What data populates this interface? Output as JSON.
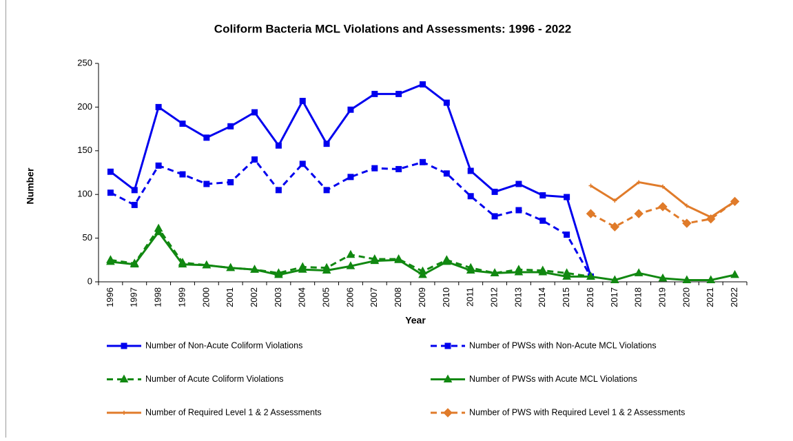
{
  "chart_data": {
    "type": "line",
    "title": "Coliform Bacteria MCL Violations and Assessments: 1996 - 2022",
    "x_label": "Year",
    "y_label": "Number",
    "categories": [
      "1996",
      "1997",
      "1998",
      "1999",
      "2000",
      "2001",
      "2002",
      "2003",
      "2004",
      "2005",
      "2006",
      "2007",
      "2008",
      "2009",
      "2010",
      "2011",
      "2012",
      "2013",
      "2014",
      "2015",
      "2016",
      "2017",
      "2018",
      "2019",
      "2020",
      "2021",
      "2022"
    ],
    "ylim": [
      0,
      250
    ],
    "yticks": [
      0,
      50,
      100,
      150,
      200,
      250
    ],
    "grid": false,
    "series": [
      {
        "name": "Number of Non-Acute Coliform Violations",
        "color": "#0000ee",
        "dash": false,
        "marker": "square",
        "values": [
          126,
          105,
          200,
          181,
          165,
          178,
          194,
          156,
          207,
          158,
          197,
          215,
          215,
          226,
          205,
          127,
          103,
          112,
          99,
          97,
          6,
          null,
          null,
          null,
          null,
          null,
          null
        ]
      },
      {
        "name": "Number of PWSs with Non-Acute MCL Violations",
        "color": "#0000ee",
        "dash": true,
        "marker": "square",
        "values": [
          102,
          88,
          133,
          123,
          112,
          114,
          140,
          105,
          135,
          105,
          120,
          130,
          129,
          137,
          124,
          98,
          75,
          82,
          70,
          54,
          6,
          null,
          null,
          null,
          null,
          null,
          null
        ]
      },
      {
        "name": "Number of Acute Coliform Violations",
        "color": "#118811",
        "dash": true,
        "marker": "triangle",
        "values": [
          25,
          21,
          61,
          22,
          19,
          16,
          14,
          10,
          17,
          16,
          31,
          26,
          26,
          12,
          25,
          16,
          10,
          14,
          13,
          10,
          6,
          null,
          null,
          null,
          null,
          null,
          null
        ]
      },
      {
        "name": "Number of PWSs with Acute MCL Violations",
        "color": "#118811",
        "dash": false,
        "marker": "triangle",
        "values": [
          23,
          20,
          57,
          20,
          19,
          16,
          14,
          8,
          14,
          13,
          18,
          24,
          25,
          8,
          23,
          13,
          10,
          11,
          11,
          6,
          6,
          2,
          10,
          4,
          2,
          2,
          8
        ]
      },
      {
        "name": "Number of Required Level 1 & 2 Assessments",
        "color": "#e07b2a",
        "dash": false,
        "marker": "plus",
        "values": [
          null,
          null,
          null,
          null,
          null,
          null,
          null,
          null,
          null,
          null,
          null,
          null,
          null,
          null,
          null,
          null,
          null,
          null,
          null,
          null,
          110,
          93,
          114,
          109,
          87,
          74,
          92
        ]
      },
      {
        "name": "Number of PWS with Required Level 1 & 2 Assessments",
        "color": "#e07b2a",
        "dash": true,
        "marker": "diamond",
        "values": [
          null,
          null,
          null,
          null,
          null,
          null,
          null,
          null,
          null,
          null,
          null,
          null,
          null,
          null,
          null,
          null,
          null,
          null,
          null,
          null,
          78,
          63,
          78,
          86,
          67,
          72,
          92
        ]
      }
    ]
  }
}
